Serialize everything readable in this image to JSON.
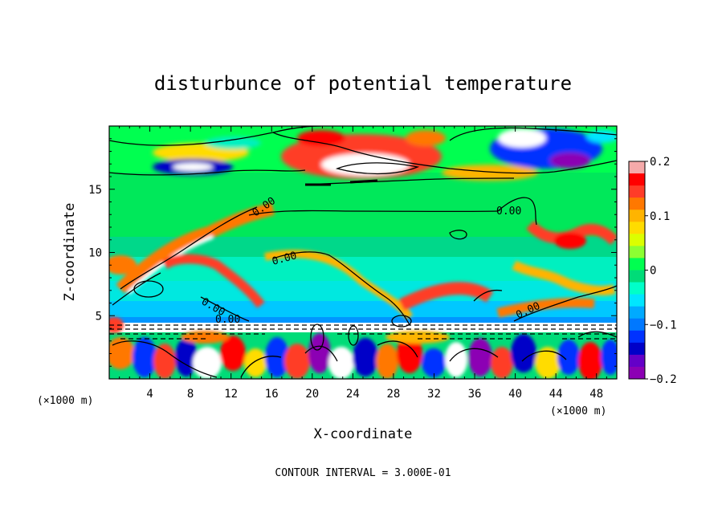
{
  "chart_data": {
    "type": "heatmap",
    "title": "disturbunce of potential temperature",
    "xlabel": "X-coordinate",
    "ylabel": "Z-coordinate",
    "x_unit": "(×1000 m)",
    "z_unit": "(×1000 m)",
    "xlim": [
      0,
      50
    ],
    "ylim": [
      0,
      20
    ],
    "x_ticks": [
      "4",
      "8",
      "12",
      "16",
      "20",
      "24",
      "28",
      "32",
      "36",
      "40",
      "44",
      "48"
    ],
    "y_ticks": [
      "5",
      "10",
      "15"
    ],
    "colorbar": {
      "range": [
        -0.2,
        0.2
      ],
      "tick_labels": [
        "0.2",
        "0.1",
        "0",
        "−0.1",
        "−0.2"
      ],
      "colors": [
        "#f5aaaa",
        "#ff0000",
        "#ff3c28",
        "#ff7800",
        "#ffb400",
        "#ffdc00",
        "#dcff00",
        "#8cff32",
        "#00ff50",
        "#00dc78",
        "#00ffc8",
        "#00e6ff",
        "#00aaff",
        "#0078ff",
        "#0032ff",
        "#0000c8",
        "#6400c8",
        "#8c00b4"
      ]
    },
    "contour_labels": [
      "0.00",
      "0.00",
      "0.00",
      "0.00",
      "0.00",
      "0.00"
    ],
    "contour_interval_text": "CONTOUR INTERVAL = 3.000E-01",
    "regions": [
      {
        "x": [
          0,
          50
        ],
        "z": [
          0,
          4.5
        ],
        "description": "strong alternating positive/negative anomalies near surface"
      },
      {
        "x": [
          18,
          34
        ],
        "z": [
          16.5,
          19.5
        ],
        "value_range": [
          0.1,
          0.3
        ]
      },
      {
        "x": [
          39,
          48
        ],
        "z": [
          17,
          19.5
        ],
        "value_range": [
          -0.3,
          -0.1
        ]
      },
      {
        "x": [
          5,
          13
        ],
        "z": [
          16,
          17.5
        ],
        "value_range": [
          -0.3,
          -0.1
        ]
      }
    ]
  }
}
